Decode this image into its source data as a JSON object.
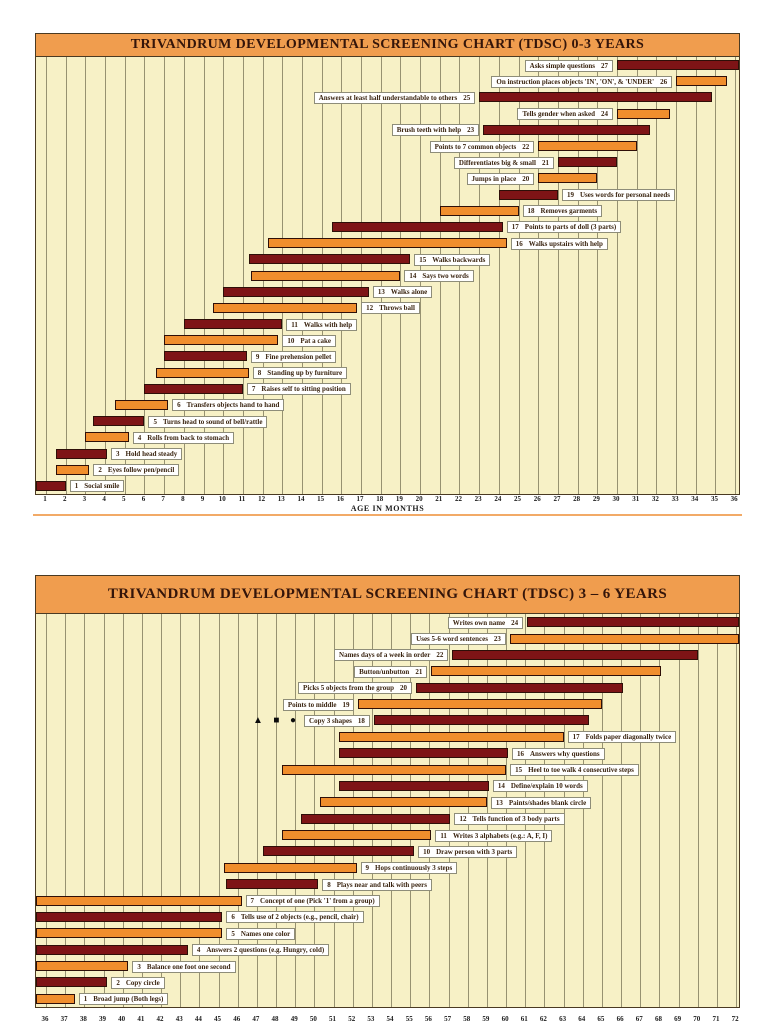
{
  "colors": {
    "title_band": "#f09d4e",
    "plot_background": "#f7f1c6",
    "grid_line": "#565438",
    "bar_dark_red": "#7e1416",
    "bar_orange": "#f08e2d",
    "label_text": "#3a2410",
    "divider_orange": "#f2aa67"
  },
  "chart_data": [
    {
      "type": "bar",
      "variant": "horizontal-age-range-bars",
      "title": "TRIVANDRUM DEVELOPMENTAL SCREENING CHART (TDSC) 0-3 YEARS",
      "xlabel": "AGE IN MONTHS",
      "xlim": [
        1,
        36
      ],
      "xticks": [
        1,
        2,
        3,
        4,
        5,
        6,
        7,
        8,
        9,
        10,
        11,
        12,
        13,
        14,
        15,
        16,
        17,
        18,
        19,
        20,
        21,
        22,
        23,
        24,
        25,
        26,
        27,
        28,
        29,
        30,
        31,
        32,
        33,
        34,
        35,
        36
      ],
      "grid": true,
      "legend": "none",
      "items": [
        {
          "n": 1,
          "label": "Social smile",
          "color": "dark",
          "side": "right",
          "start": 0.5,
          "end": 2
        },
        {
          "n": 2,
          "label": "Eyes follow pen/pencil",
          "color": "orange",
          "side": "right",
          "start": 1.5,
          "end": 3.2
        },
        {
          "n": 3,
          "label": "Hold head steady",
          "color": "dark",
          "side": "right",
          "start": 1.5,
          "end": 4.1
        },
        {
          "n": 4,
          "label": "Rolls from back to stomach",
          "color": "orange",
          "side": "right",
          "start": 3,
          "end": 5.2
        },
        {
          "n": 5,
          "label": "Turns head to sound of bell/rattle",
          "color": "dark",
          "side": "right",
          "start": 3.4,
          "end": 6
        },
        {
          "n": 6,
          "label": "Transfers objects hand to hand",
          "color": "orange",
          "side": "right",
          "start": 4.5,
          "end": 7.2
        },
        {
          "n": 7,
          "label": "Raises self to sitting position",
          "color": "dark",
          "side": "right",
          "start": 6,
          "end": 11
        },
        {
          "n": 8,
          "label": "Standing up by furniture",
          "color": "orange",
          "side": "right",
          "start": 6.6,
          "end": 11.3
        },
        {
          "n": 9,
          "label": "Fine prehension pellet",
          "color": "dark",
          "side": "right",
          "start": 7,
          "end": 11.2
        },
        {
          "n": 10,
          "label": "Pat a cake",
          "color": "orange",
          "side": "right",
          "start": 7,
          "end": 12.8
        },
        {
          "n": 11,
          "label": "Walks with help",
          "color": "dark",
          "side": "right",
          "start": 8,
          "end": 13
        },
        {
          "n": 12,
          "label": "Throws ball",
          "color": "orange",
          "side": "right",
          "start": 9.5,
          "end": 16.8
        },
        {
          "n": 13,
          "label": "Walks alone",
          "color": "dark",
          "side": "right",
          "start": 10,
          "end": 17.4
        },
        {
          "n": 14,
          "label": "Says two words",
          "color": "orange",
          "side": "right",
          "start": 11.4,
          "end": 19
        },
        {
          "n": 15,
          "label": "Walks backwards",
          "color": "dark",
          "side": "right",
          "start": 11.3,
          "end": 19.5
        },
        {
          "n": 16,
          "label": "Walks upstairs with help",
          "color": "orange",
          "side": "right",
          "start": 12.3,
          "end": 24.4
        },
        {
          "n": 17,
          "label": "Points to parts of doll (3 parts)",
          "color": "dark",
          "side": "right",
          "start": 15.5,
          "end": 24.2
        },
        {
          "n": 18,
          "label": "Removes garments",
          "color": "orange",
          "side": "right",
          "start": 21,
          "end": 25
        },
        {
          "n": 19,
          "label": "Uses words for personal needs",
          "color": "dark",
          "side": "right",
          "start": 24,
          "end": 27
        },
        {
          "n": 20,
          "label": "Jumps in place",
          "color": "orange",
          "side": "left",
          "start": 26,
          "end": 29
        },
        {
          "n": 21,
          "label": "Differentiates big & small",
          "color": "dark",
          "side": "left",
          "start": 27,
          "end": 30
        },
        {
          "n": 22,
          "label": "Points to 7 common objects",
          "color": "orange",
          "side": "left",
          "start": 26,
          "end": 31
        },
        {
          "n": 23,
          "label": "Brush teeth with help",
          "color": "dark",
          "side": "left",
          "start": 23.2,
          "end": 31.7
        },
        {
          "n": 24,
          "label": "Tells gender when asked",
          "color": "orange",
          "side": "left",
          "start": 30,
          "end": 32.7
        },
        {
          "n": 25,
          "label": "Answers at least half understandable to others",
          "color": "dark",
          "side": "left",
          "start": 23,
          "end": 34.8
        },
        {
          "n": 26,
          "label": "On instruction places objects 'IN', 'ON', & 'UNDER'",
          "color": "orange",
          "side": "left",
          "start": 33,
          "end": 35.6
        },
        {
          "n": 27,
          "label": "Asks simple questions",
          "color": "dark",
          "side": "left",
          "start": 30,
          "end": 36.3
        }
      ]
    },
    {
      "type": "bar",
      "variant": "horizontal-age-range-bars",
      "title": "TRIVANDRUM DEVELOPMENTAL SCREENING CHART (TDSC) 3 – 6 YEARS",
      "xlabel": "",
      "xlim": [
        36,
        72
      ],
      "xticks": [
        36,
        37,
        38,
        39,
        40,
        41,
        42,
        43,
        44,
        45,
        46,
        47,
        48,
        49,
        50,
        51,
        52,
        53,
        54,
        55,
        56,
        57,
        58,
        59,
        60,
        61,
        62,
        63,
        64,
        65,
        66,
        67,
        68,
        69,
        70,
        71,
        72
      ],
      "grid": true,
      "legend": "none",
      "items": [
        {
          "n": 1,
          "label": "Broad jump (Both legs)",
          "color": "orange",
          "side": "right",
          "start": 35.5,
          "end": 37.5
        },
        {
          "n": 2,
          "label": "Copy circle",
          "color": "dark",
          "side": "right",
          "start": 35.5,
          "end": 39.2
        },
        {
          "n": 3,
          "label": "Balance one foot one second",
          "color": "orange",
          "side": "right",
          "start": 35.5,
          "end": 40.3
        },
        {
          "n": 4,
          "label": "Answers 2 questions (e.g. Hungry, cold)",
          "color": "dark",
          "side": "right",
          "start": 35.5,
          "end": 43.4
        },
        {
          "n": 5,
          "label": "Names one color",
          "color": "orange",
          "side": "right",
          "start": 35.5,
          "end": 45.2
        },
        {
          "n": 6,
          "label": "Tells use of 2 objects (e.g., pencil, chair)",
          "color": "dark",
          "side": "right",
          "start": 35.5,
          "end": 45.2
        },
        {
          "n": 7,
          "label": "Concept of one (Pick '1' from a group)",
          "color": "orange",
          "side": "right",
          "start": 35.5,
          "end": 46.2
        },
        {
          "n": 8,
          "label": "Plays near and talk with peers",
          "color": "dark",
          "side": "right",
          "start": 45.4,
          "end": 50.2
        },
        {
          "n": 9,
          "label": "Hops continuously 3 steps",
          "color": "orange",
          "side": "right",
          "start": 45.3,
          "end": 52.2
        },
        {
          "n": 10,
          "label": "Draw person with 3 parts",
          "color": "dark",
          "side": "right",
          "start": 47.3,
          "end": 55.2
        },
        {
          "n": 11,
          "label": "Writes 3 alphabets (e.g.: A, F, I)",
          "color": "orange",
          "side": "right",
          "start": 48.3,
          "end": 56.1
        },
        {
          "n": 12,
          "label": "Tells function of 3 body parts",
          "color": "dark",
          "side": "right",
          "start": 49.3,
          "end": 57.1
        },
        {
          "n": 13,
          "label": "Paints/shades blank circle",
          "color": "orange",
          "side": "right",
          "start": 50.3,
          "end": 59
        },
        {
          "n": 14,
          "label": "Define/explain 10 words",
          "color": "dark",
          "side": "right",
          "start": 51.3,
          "end": 59.1
        },
        {
          "n": 15,
          "label": "Heel to toe walk 4 consecutive steps",
          "color": "orange",
          "side": "right",
          "start": 48.3,
          "end": 60
        },
        {
          "n": 16,
          "label": "Answers why questions",
          "color": "dark",
          "side": "right",
          "start": 51.3,
          "end": 60.1
        },
        {
          "n": 17,
          "label": "Folds paper diagonally twice",
          "color": "orange",
          "side": "right",
          "start": 51.3,
          "end": 63
        },
        {
          "n": 18,
          "label": "Copy 3 shapes",
          "shapes_prefix": "▲ ■ ●",
          "color": "dark",
          "side": "left",
          "start": 53.1,
          "end": 64.3
        },
        {
          "n": 19,
          "label": "Points to middle",
          "color": "orange",
          "side": "left",
          "start": 52.3,
          "end": 65
        },
        {
          "n": 20,
          "label": "Picks 5 objects from the group",
          "color": "dark",
          "side": "left",
          "start": 55.3,
          "end": 66.1
        },
        {
          "n": 21,
          "label": "Button/unbutton",
          "color": "orange",
          "side": "left",
          "start": 56.1,
          "end": 68.1
        },
        {
          "n": 22,
          "label": "Names days of a week in order",
          "color": "dark",
          "side": "left",
          "start": 57.2,
          "end": 70
        },
        {
          "n": 23,
          "label": "Uses 5-6 word sentences",
          "color": "orange",
          "side": "left",
          "start": 60.2,
          "end": 72.3
        },
        {
          "n": 24,
          "label": "Writes own name",
          "color": "dark",
          "side": "left",
          "start": 61.1,
          "end": 72.3
        }
      ]
    }
  ]
}
